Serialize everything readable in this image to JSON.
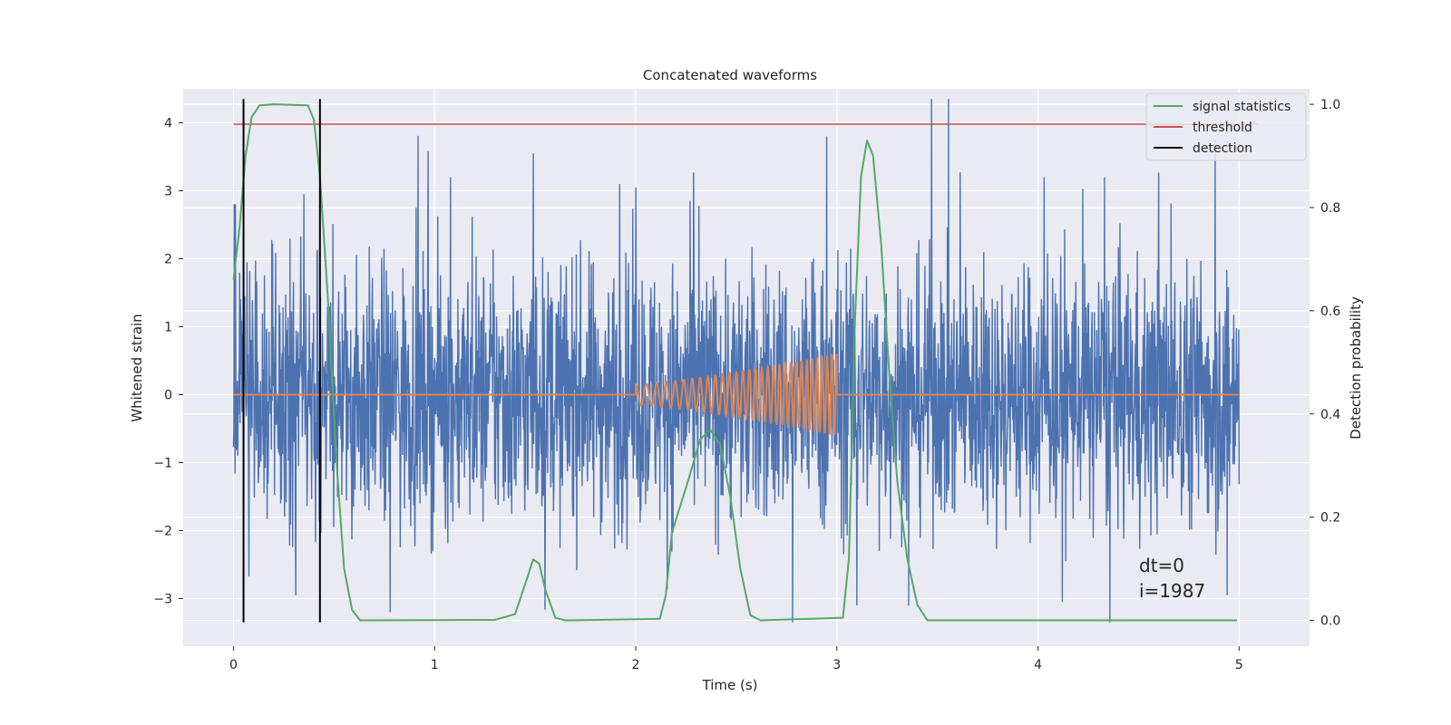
{
  "chart_data": {
    "type": "line",
    "title": "Concatenated waveforms",
    "xlabel": "Time (s)",
    "ylabel_left": "Whitened strain",
    "ylabel_right": "Detection probability",
    "xlim": [
      -0.25,
      5.35
    ],
    "ylim_left": [
      -3.7,
      4.5
    ],
    "ylim_right": [
      -0.05,
      1.03
    ],
    "xticks": [
      0,
      1,
      2,
      3,
      4,
      5
    ],
    "yticks_left": [
      -3,
      -2,
      -1,
      0,
      1,
      2,
      3,
      4
    ],
    "yticks_right": [
      0.0,
      0.2,
      0.4,
      0.6,
      0.8,
      1.0
    ],
    "grid": true,
    "background": "#eaeaf2",
    "legend_position": "top-right",
    "legend": [
      {
        "label": "signal statistics",
        "color": "#55a868"
      },
      {
        "label": "threshold",
        "color": "#c44e52"
      },
      {
        "label": "detection",
        "color": "#000000"
      }
    ],
    "annotation": [
      "dt=0",
      "i=1987"
    ],
    "series": [
      {
        "kind": "noise",
        "color": "#4c72b0",
        "x_range": [
          0,
          5
        ],
        "spikes": [
          {
            "x": 0.01,
            "y": 2.8
          },
          {
            "x": 0.35,
            "y": 2.95
          },
          {
            "x": 1.08,
            "y": 3.2
          },
          {
            "x": 1.49,
            "y": 3.55
          },
          {
            "x": 1.92,
            "y": 3.1
          },
          {
            "x": 2.0,
            "y": 3.05
          },
          {
            "x": 2.95,
            "y": 3.8
          },
          {
            "x": 3.47,
            "y": 4.35
          },
          {
            "x": 4.88,
            "y": 3.75
          },
          {
            "x": 4.03,
            "y": 3.2
          },
          {
            "x": 4.33,
            "y": 3.2
          },
          {
            "x": 0.31,
            "y": -2.95
          },
          {
            "x": 0.78,
            "y": -3.2
          },
          {
            "x": 2.78,
            "y": -3.35
          },
          {
            "x": 3.1,
            "y": -3.1
          },
          {
            "x": 4.12,
            "y": -3.05
          },
          {
            "x": 4.94,
            "y": -2.95
          }
        ]
      },
      {
        "kind": "chirp",
        "color": "#dd8452",
        "x_range": [
          0,
          5
        ],
        "chirp_start": 2.0,
        "chirp_end": 3.0,
        "amp_start": 0.15,
        "amp_end": 0.6
      },
      {
        "name": "signal statistics",
        "axis": "right",
        "color": "#55a868",
        "points": [
          [
            0,
            0.66
          ],
          [
            0.03,
            0.76
          ],
          [
            0.06,
            0.9
          ],
          [
            0.09,
            0.975
          ],
          [
            0.13,
            0.998
          ],
          [
            0.2,
            1.0
          ],
          [
            0.37,
            0.998
          ],
          [
            0.4,
            0.97
          ],
          [
            0.43,
            0.86
          ],
          [
            0.47,
            0.62
          ],
          [
            0.51,
            0.32
          ],
          [
            0.55,
            0.1
          ],
          [
            0.59,
            0.02
          ],
          [
            0.63,
            0.0
          ],
          [
            1.3,
            0.001
          ],
          [
            1.4,
            0.012
          ],
          [
            1.45,
            0.07
          ],
          [
            1.49,
            0.118
          ],
          [
            1.52,
            0.11
          ],
          [
            1.55,
            0.06
          ],
          [
            1.6,
            0.005
          ],
          [
            1.65,
            0.0
          ],
          [
            2.12,
            0.003
          ],
          [
            2.15,
            0.05
          ],
          [
            2.18,
            0.17
          ],
          [
            2.22,
            0.22
          ],
          [
            2.26,
            0.27
          ],
          [
            2.32,
            0.35
          ],
          [
            2.37,
            0.37
          ],
          [
            2.42,
            0.34
          ],
          [
            2.47,
            0.24
          ],
          [
            2.52,
            0.1
          ],
          [
            2.57,
            0.01
          ],
          [
            2.62,
            0.0
          ],
          [
            3.03,
            0.005
          ],
          [
            3.06,
            0.12
          ],
          [
            3.09,
            0.58
          ],
          [
            3.12,
            0.86
          ],
          [
            3.15,
            0.93
          ],
          [
            3.18,
            0.9
          ],
          [
            3.22,
            0.73
          ],
          [
            3.26,
            0.48
          ],
          [
            3.3,
            0.27
          ],
          [
            3.35,
            0.12
          ],
          [
            3.4,
            0.03
          ],
          [
            3.45,
            0.0
          ],
          [
            4.99,
            0.0
          ]
        ]
      },
      {
        "name": "threshold",
        "axis": "left",
        "color": "#c44e52",
        "y": 3.98,
        "x_range": [
          0,
          5.1
        ]
      },
      {
        "name": "detection",
        "axis": "left",
        "color": "#000000",
        "x": [
          0.05,
          0.43
        ],
        "y_range": [
          -3.35,
          4.35
        ]
      }
    ]
  }
}
